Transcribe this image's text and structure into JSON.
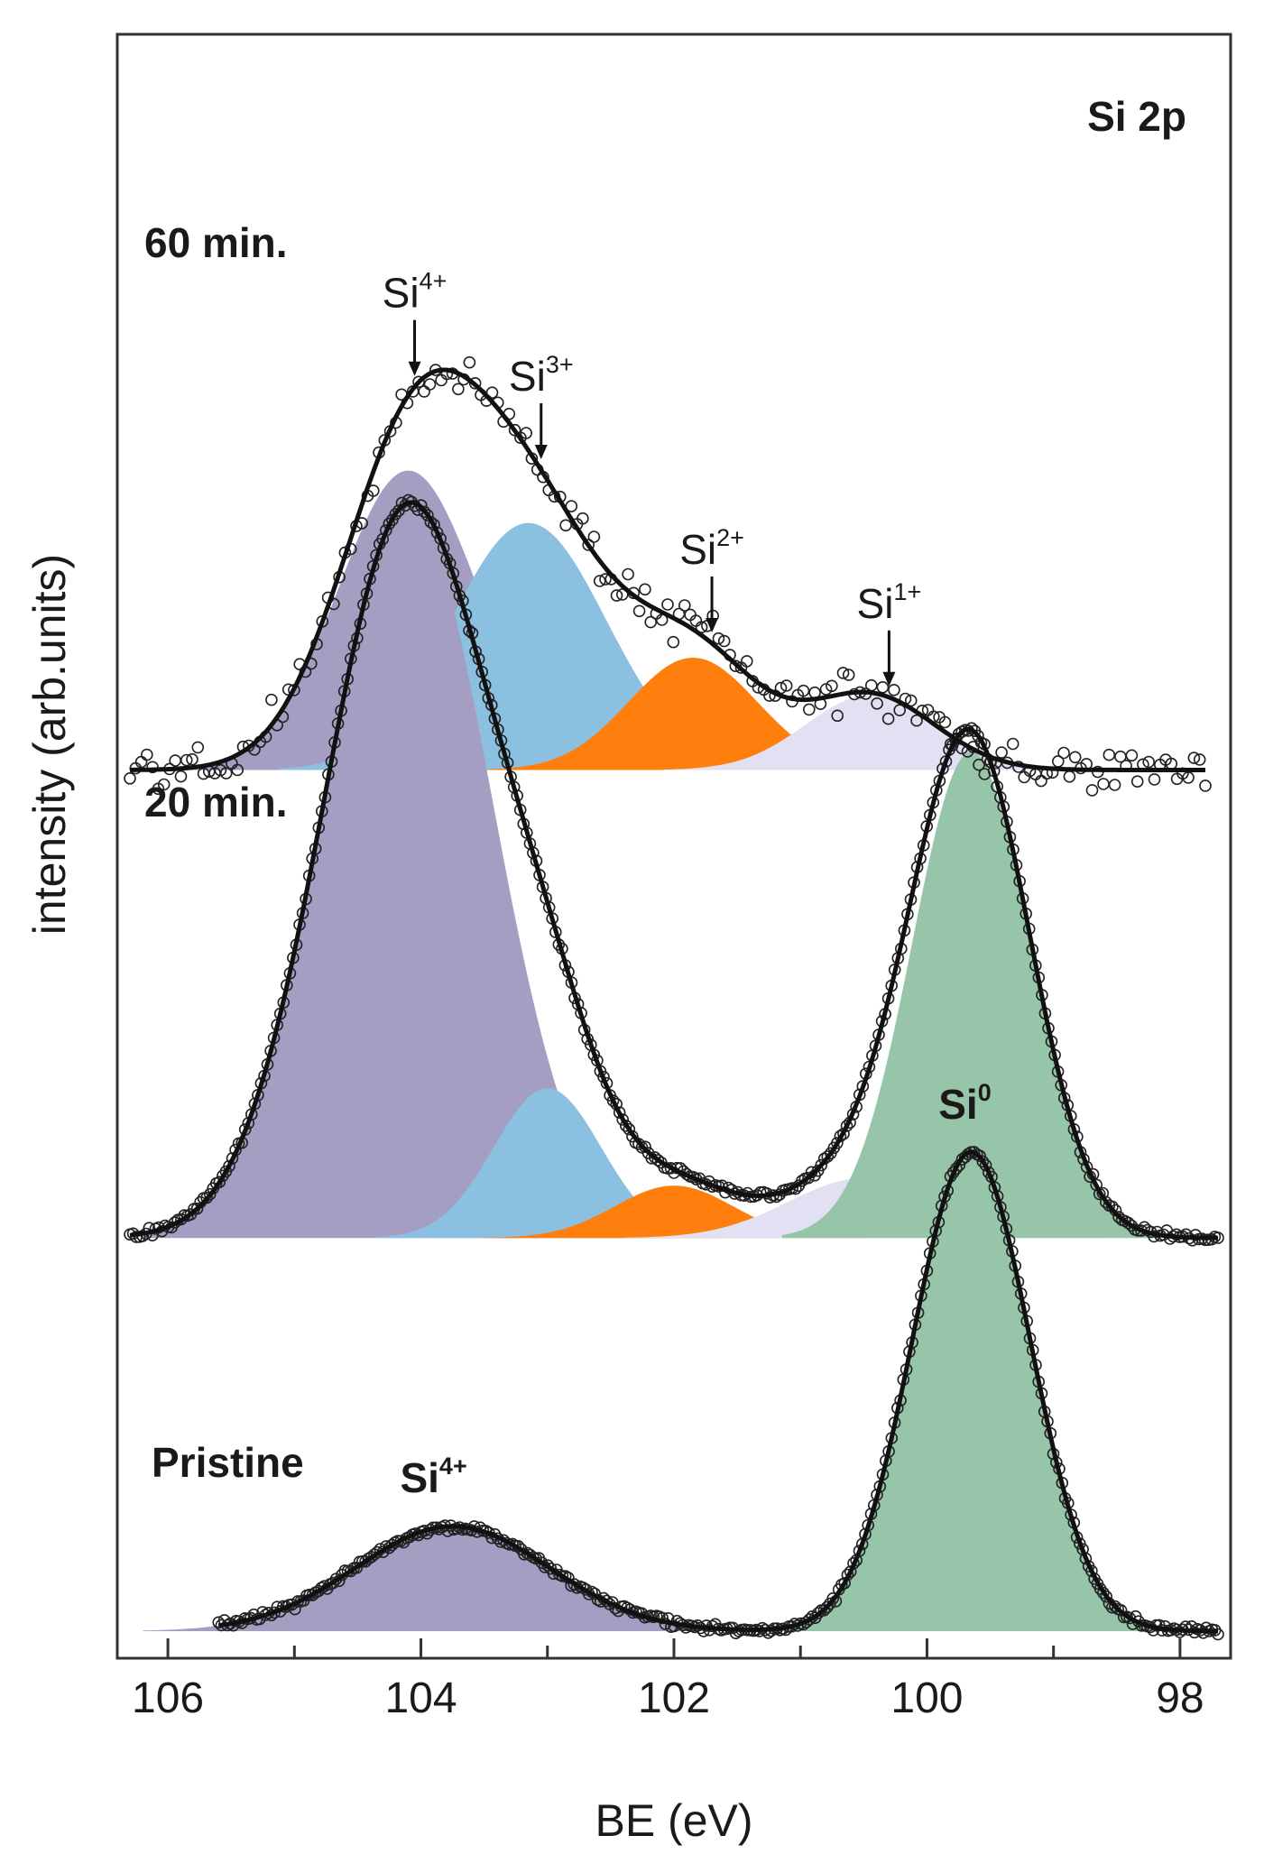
{
  "chart_data": {
    "type": "line",
    "title": "Si 2p",
    "xlabel": "BE (eV)",
    "ylabel": "intensity (arb.units)",
    "xlim": [
      106.4,
      97.6
    ],
    "x_reversed": true,
    "xticks": [
      106,
      104,
      102,
      100,
      98
    ],
    "xticks_minor": [
      105,
      103,
      101,
      99
    ],
    "yticks": [],
    "grid": false,
    "legend": "none",
    "colors": {
      "Si4+": "#a49ec3",
      "Si3+": "#8cc0e0",
      "Si2+": "#ff7f0e",
      "Si1+": "#e2e0f3",
      "Si0": "#97c5a9",
      "envelope": "#111111",
      "frame": "#333333"
    },
    "panels": [
      {
        "label": "60 min.",
        "baseline_offset": 2.3,
        "x_range": [
          106.3,
          97.8
        ],
        "components": [
          {
            "name": "Si4+",
            "center": 104.1,
            "fwhm": 1.3,
            "height": 0.8
          },
          {
            "name": "Si3+",
            "center": 103.15,
            "fwhm": 1.45,
            "height": 0.66
          },
          {
            "name": "Si2+",
            "center": 101.85,
            "fwhm": 1.2,
            "height": 0.3
          },
          {
            "name": "Si1+",
            "center": 100.45,
            "fwhm": 1.2,
            "height": 0.2
          }
        ],
        "annotations": [
          {
            "text": "Si",
            "sup": "4+",
            "x": 104.05
          },
          {
            "text": "Si",
            "sup": "3+",
            "x": 103.05
          },
          {
            "text": "Si",
            "sup": "2+",
            "x": 101.7
          },
          {
            "text": "Si",
            "sup": "1+",
            "x": 100.3
          }
        ]
      },
      {
        "label": "20 min.",
        "baseline_offset": 1.05,
        "x_range": [
          106.3,
          97.7
        ],
        "components": [
          {
            "name": "Si4+",
            "center": 104.1,
            "fwhm": 1.55,
            "height": 1.95
          },
          {
            "name": "Si3+",
            "center": 103.0,
            "fwhm": 1.0,
            "height": 0.4
          },
          {
            "name": "Si2+",
            "center": 102.0,
            "fwhm": 1.1,
            "height": 0.14
          },
          {
            "name": "Si1+",
            "center": 100.5,
            "fwhm": 1.4,
            "height": 0.16
          },
          {
            "name": "Si0",
            "center": 99.65,
            "fwhm": 1.1,
            "height": 1.3
          }
        ],
        "annotations": []
      },
      {
        "label": "Pristine",
        "baseline_offset": 0,
        "x_range": [
          105.6,
          97.7
        ],
        "components": [
          {
            "name": "Si4+",
            "center": 103.75,
            "fwhm": 1.8,
            "height": 0.28
          },
          {
            "name": "Si0",
            "center": 99.65,
            "fwhm": 1.1,
            "height": 1.28
          }
        ],
        "annotations": [
          {
            "text": "Si",
            "sup": "4+",
            "x": 103.9,
            "bold": true
          },
          {
            "text": "Si",
            "sup": "0",
            "x": 99.7,
            "bold": true
          }
        ]
      }
    ]
  }
}
